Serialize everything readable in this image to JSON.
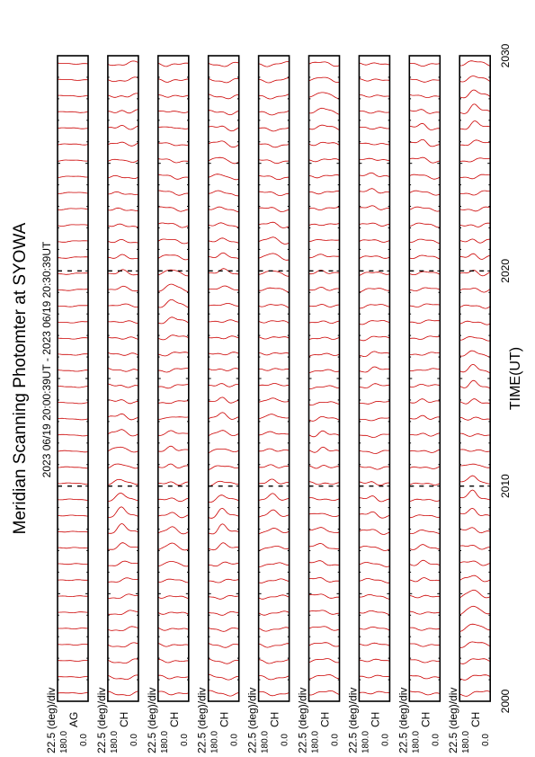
{
  "page": {
    "title": "Meridian Scanning Photomter at SYOWA",
    "time_range": "2023 06/19 20:00:39UT - 2023 06/19 20:30:39UT",
    "xlabel": "TIME(UT)"
  },
  "chart_data": {
    "type": "line",
    "title": "Meridian Scanning Photomter at SYOWA",
    "xlabel": "TIME(UT)",
    "x_ticks": [
      "2000",
      "2010",
      "2020",
      "2030"
    ],
    "x_range": [
      "2000",
      "2030"
    ],
    "scale_label": "22.5 (deg)/div",
    "y_top_label": "180.0",
    "y_bottom_label": "0.0",
    "trace_color": "#cc0000",
    "panels": [
      {
        "channel": "AG",
        "seed": 3,
        "amp": 0.25,
        "events": []
      },
      {
        "channel": "CH",
        "seed": 11,
        "amp": 0.8,
        "events": [
          [
            0.28,
            0.9
          ],
          [
            0.42,
            0.7
          ],
          [
            0.65,
            0.5
          ],
          [
            0.88,
            0.6
          ]
        ]
      },
      {
        "channel": "CH",
        "seed": 17,
        "amp": 0.8,
        "events": [
          [
            0.25,
            0.8
          ],
          [
            0.4,
            0.9
          ],
          [
            0.62,
            0.6
          ],
          [
            0.9,
            0.5
          ]
        ]
      },
      {
        "channel": "CH",
        "seed": 23,
        "amp": 0.8,
        "events": [
          [
            0.27,
            1.0
          ],
          [
            0.44,
            0.8
          ],
          [
            0.66,
            0.5
          ],
          [
            0.86,
            0.6
          ]
        ]
      },
      {
        "channel": "CH",
        "seed": 29,
        "amp": 0.75,
        "events": [
          [
            0.3,
            0.7
          ],
          [
            0.45,
            0.8
          ],
          [
            0.7,
            0.5
          ]
        ]
      },
      {
        "channel": "CH",
        "seed": 31,
        "amp": 0.75,
        "events": [
          [
            0.26,
            0.8
          ],
          [
            0.4,
            0.7
          ],
          [
            0.68,
            0.5
          ],
          [
            0.92,
            0.4
          ]
        ]
      },
      {
        "channel": "CH",
        "seed": 37,
        "amp": 0.7,
        "events": [
          [
            0.3,
            0.6
          ],
          [
            0.5,
            0.5
          ],
          [
            0.8,
            0.5
          ]
        ]
      },
      {
        "channel": "CH",
        "seed": 41,
        "amp": 0.7,
        "events": [
          [
            0.22,
            0.5
          ],
          [
            0.46,
            0.6
          ],
          [
            0.88,
            0.7
          ]
        ]
      },
      {
        "channel": "CH",
        "seed": 43,
        "amp": 0.9,
        "events": [
          [
            0.15,
            0.7
          ],
          [
            0.32,
            1.4
          ],
          [
            0.5,
            0.8
          ],
          [
            0.68,
            0.6
          ],
          [
            0.9,
            0.9
          ]
        ]
      }
    ]
  }
}
